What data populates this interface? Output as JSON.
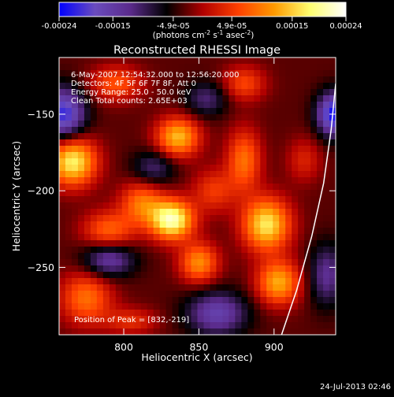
{
  "colors": {
    "background": "#000000",
    "foreground": "#ffffff",
    "colormap": [
      "#0000ff",
      "#6a4cbd",
      "#5a2a8a",
      "#000000",
      "#b00000",
      "#ff4000",
      "#ff9a00",
      "#ffff70",
      "#ffffff"
    ]
  },
  "colorbar": {
    "tick_labels": [
      "-0.00024",
      "-0.00015",
      "-4.9e-05",
      "4.9e-05",
      "0.00015",
      "0.00024"
    ],
    "tick_values": [
      -0.00024,
      -0.00015,
      -4.9e-05,
      4.9e-05,
      0.00015,
      0.00024
    ],
    "units_prefix": "(photons cm",
    "units_sup1": "-2",
    "units_mid": " s",
    "units_sup2": "-1",
    "units_mid2": " asec",
    "units_sup3": "-2",
    "units_suffix": ")"
  },
  "chart_data": {
    "type": "heatmap",
    "title": "Reconstructed RHESSI Image",
    "xlabel": "Heliocentric X (arcsec)",
    "ylabel": "Heliocentric Y (arcsec)",
    "xlim": [
      757,
      941
    ],
    "ylim": [
      -294,
      -113
    ],
    "xticks": [
      800,
      850,
      900
    ],
    "yticks": [
      -150,
      -200,
      -250
    ],
    "zlim": [
      -0.00024,
      0.00024
    ],
    "annotations": [
      "6-May-2007 12:54:32.000 to 12:56:20.000",
      "Detectors: 4F 5F 6F 7F 8F, Att 0",
      "Energy Range: 25.0 - 50.0 keV",
      "Clean     Total counts: 2.65E+03"
    ],
    "peak_label": "Position of Peak = [832,-219]",
    "peak": {
      "x": 832,
      "y": -219
    },
    "limb_curve": [
      [
        905,
        -294
      ],
      [
        915,
        -265
      ],
      [
        925,
        -230
      ],
      [
        933,
        -195
      ],
      [
        938,
        -160
      ],
      [
        941,
        -130
      ]
    ],
    "sources": [
      {
        "x": 832,
        "y": -219,
        "amp": 0.00024,
        "sx": 10,
        "sy": 9
      },
      {
        "x": 766,
        "y": -181,
        "amp": 0.00021,
        "sx": 11,
        "sy": 11
      },
      {
        "x": 895,
        "y": -222,
        "amp": 0.0002,
        "sx": 11,
        "sy": 12
      },
      {
        "x": 836,
        "y": -165,
        "amp": 0.00017,
        "sx": 10,
        "sy": 9
      },
      {
        "x": 880,
        "y": -180,
        "amp": 0.00012,
        "sx": 8,
        "sy": 14
      },
      {
        "x": 903,
        "y": -260,
        "amp": 0.00016,
        "sx": 10,
        "sy": 10
      },
      {
        "x": 850,
        "y": -247,
        "amp": 0.00014,
        "sx": 9,
        "sy": 9
      },
      {
        "x": 812,
        "y": -208,
        "amp": 0.00012,
        "sx": 10,
        "sy": 10
      },
      {
        "x": 790,
        "y": -226,
        "amp": 0.00011,
        "sx": 12,
        "sy": 9
      },
      {
        "x": 775,
        "y": -270,
        "amp": 0.00012,
        "sx": 12,
        "sy": 12
      },
      {
        "x": 795,
        "y": -130,
        "amp": 0.0001,
        "sx": 12,
        "sy": 8
      },
      {
        "x": 880,
        "y": -130,
        "amp": 9e-05,
        "sx": 10,
        "sy": 8
      },
      {
        "x": 860,
        "y": -200,
        "amp": 8e-05,
        "sx": 10,
        "sy": 10
      },
      {
        "x": 920,
        "y": -180,
        "amp": 6e-05,
        "sx": 8,
        "sy": 10
      },
      {
        "x": 805,
        "y": -285,
        "amp": 7e-05,
        "sx": 12,
        "sy": 6
      },
      {
        "x": 760,
        "y": -150,
        "amp": -0.00018,
        "sx": 10,
        "sy": 12
      },
      {
        "x": 790,
        "y": -245,
        "amp": -0.00012,
        "sx": 12,
        "sy": 8
      },
      {
        "x": 862,
        "y": -280,
        "amp": -0.00013,
        "sx": 14,
        "sy": 10
      },
      {
        "x": 940,
        "y": -150,
        "amp": -0.0002,
        "sx": 8,
        "sy": 10
      },
      {
        "x": 935,
        "y": -255,
        "amp": -0.0001,
        "sx": 8,
        "sy": 14
      },
      {
        "x": 820,
        "y": -185,
        "amp": -8e-05,
        "sx": 10,
        "sy": 8
      },
      {
        "x": 855,
        "y": -140,
        "amp": -8e-05,
        "sx": 10,
        "sy": 8
      }
    ]
  },
  "footer": {
    "timestamp": "24-Jul-2013 02:46"
  }
}
